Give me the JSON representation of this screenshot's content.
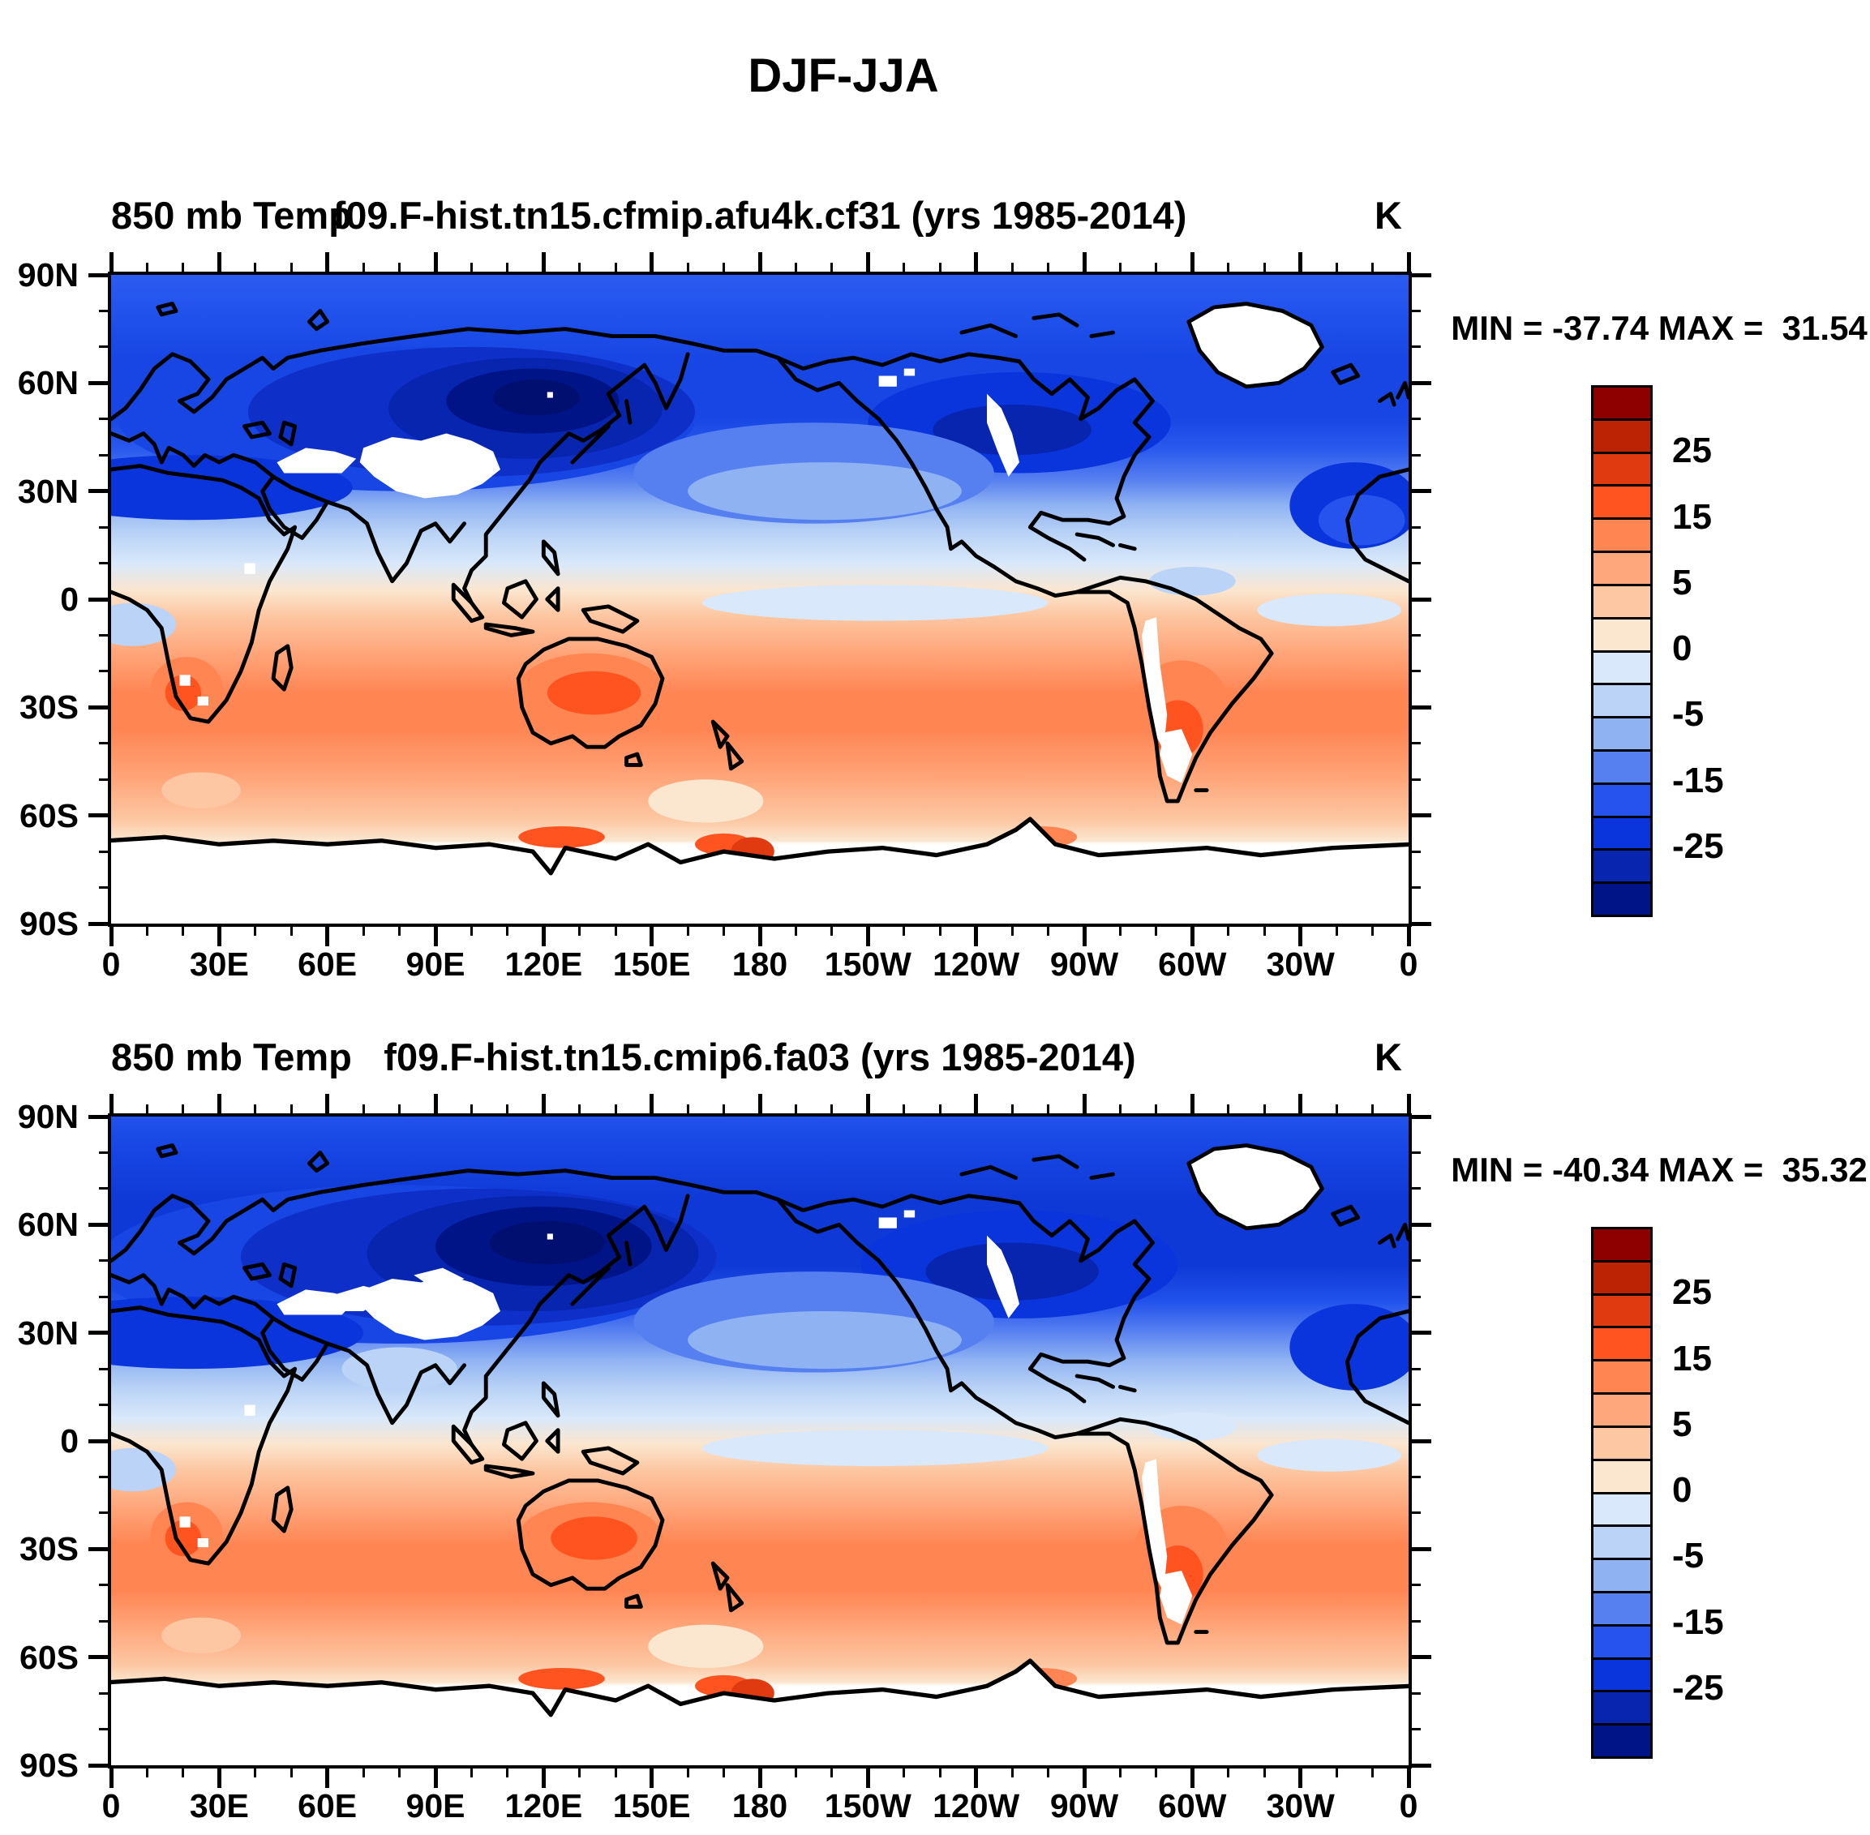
{
  "title": "DJF-JJA",
  "panels": [
    {
      "var_label": "850 mb Temp",
      "case_title": "f09.F-hist.tn15.cfmip.afu4k.cf31 (yrs 1985-2014)",
      "units": "K",
      "stats": "MIN = -37.74 MAX =  31.54",
      "min": -37.74,
      "max": 31.54
    },
    {
      "var_label": "850 mb Temp",
      "case_title": "f09.F-hist.tn15.cmip6.fa03 (yrs 1985-2014)",
      "units": "K",
      "stats": "MIN = -40.34 MAX =  35.32",
      "min": -40.34,
      "max": 35.32
    }
  ],
  "axes": {
    "lat_labels": [
      "90N",
      "60N",
      "30N",
      "0",
      "30S",
      "60S",
      "90S"
    ],
    "lon_labels": [
      "0",
      "30E",
      "60E",
      "90E",
      "120E",
      "150E",
      "180",
      "150W",
      "120W",
      "90W",
      "60W",
      "30W",
      "0"
    ],
    "minor_tick_deg": 10,
    "major_tick_deg": 30
  },
  "colorbar": {
    "colors": [
      "#8E0000",
      "#BC2204",
      "#E03A10",
      "#FF5420",
      "#FF8553",
      "#FFA77C",
      "#FCC7A2",
      "#FBE6CF",
      "#D9E8FA",
      "#BAD3F6",
      "#8FB2F2",
      "#567FF0",
      "#2653EE",
      "#0A34DC",
      "#0725AF",
      "#001488"
    ],
    "ticks": [
      {
        "label": "25",
        "boundary": 2
      },
      {
        "label": "15",
        "boundary": 4
      },
      {
        "label": "5",
        "boundary": 6
      },
      {
        "label": "0",
        "boundary": 8
      },
      {
        "label": "-5",
        "boundary": 10
      },
      {
        "label": "-15",
        "boundary": 12
      },
      {
        "label": "-25",
        "boundary": 14
      }
    ]
  },
  "chart_data": {
    "type": "heatmap",
    "subtype": "filled-contour global lat-lon maps (NCL style), 2 stacked panels",
    "figure_title": "DJF-JJA",
    "units": "K",
    "projection": "cylindrical equidistant; longitude 0E eastward to 360 (0) left-to-right; latitude 90N (top) to 90S (bottom)",
    "contour_levels": [
      -30,
      -25,
      -20,
      -15,
      -10,
      -5,
      -2.5,
      0,
      2.5,
      5,
      10,
      15,
      20,
      25,
      30
    ],
    "palette_top_to_bottom": [
      "#8E0000",
      "#BC2204",
      "#E03A10",
      "#FF5420",
      "#FF8553",
      "#FFA77C",
      "#FCC7A2",
      "#FBE6CF",
      "#D9E8FA",
      "#BAD3F6",
      "#8FB2F2",
      "#567FF0",
      "#2653EE",
      "#0A34DC",
      "#0725AF",
      "#001488"
    ],
    "colorbar_tick_labels": [
      25,
      15,
      5,
      0,
      -5,
      -15,
      -25
    ],
    "x_axis": {
      "tick_labels": [
        "0",
        "30E",
        "60E",
        "90E",
        "120E",
        "150E",
        "180",
        "150W",
        "120W",
        "90W",
        "60W",
        "30W",
        "0"
      ],
      "range_deg": [
        0,
        360
      ],
      "minor_tick_deg": 10
    },
    "y_axis": {
      "tick_labels": [
        "90N",
        "60N",
        "30N",
        "0",
        "30S",
        "60S",
        "90S"
      ],
      "range_deg": [
        90,
        -90
      ],
      "minor_tick_deg": 10
    },
    "panels": [
      {
        "title": "f09.F-hist.tn15.cfmip.afu4k.cf31 (yrs 1985-2014)",
        "variable": "850 mb Temp difference DJF minus JJA",
        "min": -37.74,
        "max": 31.54,
        "zonal_mean_estimate": {
          "lat": [
            90,
            75,
            60,
            50,
            40,
            30,
            22,
            15,
            8,
            0,
            -8,
            -15,
            -25,
            -32,
            -40,
            -50,
            -57,
            -63,
            -70,
            -80,
            -90
          ],
          "value_K": [
            -12,
            -14,
            -18,
            -20,
            -13,
            -16,
            -10,
            -5,
            0,
            2,
            4,
            5,
            7,
            9,
            7,
            6,
            5,
            4,
            null,
            null,
            null
          ]
        },
        "notable_features": [
          "coldest core about -35 K over northeast Siberia (50-65N, 100-140E)",
          "secondary cold core about -28 K over central Canada",
          "dark blue band (-15 to -25 K) across Sahara, Arabia and south Asia near 20-35N",
          "warm maxima +10 to +20 K over Australia, southern Africa and Argentina near 30S",
          "white missing-data areas over Greenland, Tibetan Plateau/Iran mountains, Rockies, Andes, interior Antarctica"
        ]
      },
      {
        "title": "f09.F-hist.tn15.cmip6.fa03 (yrs 1985-2014)",
        "variable": "850 mb Temp difference DJF minus JJA",
        "min": -40.34,
        "max": 35.32,
        "zonal_mean_estimate": {
          "lat": [
            90,
            75,
            60,
            50,
            40,
            30,
            22,
            15,
            8,
            0,
            -8,
            -15,
            -25,
            -32,
            -40,
            -50,
            -57,
            -63,
            -70,
            -80,
            -90
          ],
          "value_K": [
            -13,
            -16,
            -22,
            -24,
            -16,
            -18,
            -12,
            -7,
            -2,
            1,
            4,
            5,
            7,
            9,
            8,
            6,
            5,
            4,
            null,
            null,
            null
          ]
        },
        "notable_features": [
          "coldest core about -40 K over northeast Siberia, larger than top panel",
          "larger white missing-data region over central Asia / Tibetan Plateau",
          "warm maxima +10 to +20 K over Australia, southern Africa and Argentina near 30S",
          "white missing-data areas over Greenland, Rockies, Andes, interior Antarctica"
        ]
      }
    ]
  }
}
